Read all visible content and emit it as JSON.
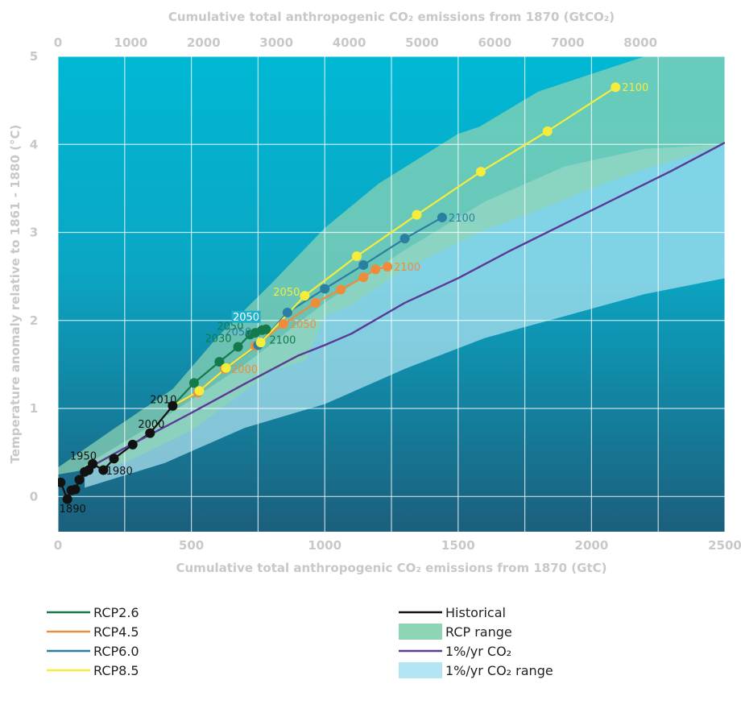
{
  "chart_data": {
    "type": "line",
    "xlabel": "Cumulative total anthropogenic CO₂ emissions from 1870 (GtC)",
    "x2label": "Cumulative total anthropogenic CO₂ emissions from 1870 (GtCO₂)",
    "ylabel": "Temperature anomaly relative to 1861 - 1880 (°C)",
    "xlim": [
      0,
      2500
    ],
    "ylim": [
      -0.4,
      5
    ],
    "x_ticks": [
      0,
      500,
      1000,
      1500,
      2000,
      2500
    ],
    "y_ticks": [
      0,
      1,
      2,
      3,
      4,
      5
    ],
    "x2_ticks": [
      0,
      1000,
      2000,
      3000,
      4000,
      5000,
      6000,
      7000,
      8000
    ],
    "x2_per_x": 3.664,
    "grid": true,
    "background": {
      "top_color": "#00b8d4",
      "bottom_color": "#1b5f7c"
    },
    "series": [
      {
        "name": "Historical",
        "color": "#111111",
        "points": [
          [
            10,
            0.16
          ],
          [
            35,
            -0.03
          ],
          [
            50,
            0.07
          ],
          [
            65,
            0.08
          ],
          [
            80,
            0.19
          ],
          [
            100,
            0.28
          ],
          [
            115,
            0.3
          ],
          [
            130,
            0.37
          ],
          [
            170,
            0.3
          ],
          [
            210,
            0.43
          ],
          [
            280,
            0.59
          ],
          [
            345,
            0.72
          ],
          [
            430,
            1.03
          ]
        ]
      },
      {
        "name": "RCP2.6",
        "color": "#137a4b",
        "points": [
          [
            430,
            1.03
          ],
          [
            510,
            1.29
          ],
          [
            605,
            1.53
          ],
          [
            675,
            1.7
          ],
          [
            720,
            1.84
          ],
          [
            740,
            1.86
          ],
          [
            765,
            1.89
          ],
          [
            780,
            1.9
          ]
        ],
        "labels": [
          {
            "i": 3,
            "text": "2030"
          },
          {
            "i": 4,
            "text": "2050"
          },
          {
            "i": 7,
            "text": "2100"
          }
        ]
      },
      {
        "name": "RCP4.5",
        "color": "#ef8c3a",
        "points": [
          [
            430,
            1.03
          ],
          [
            525,
            1.18
          ],
          [
            625,
            1.45
          ],
          [
            740,
            1.71
          ],
          [
            845,
            1.96
          ],
          [
            965,
            2.2
          ],
          [
            1060,
            2.35
          ],
          [
            1145,
            2.49
          ],
          [
            1190,
            2.58
          ],
          [
            1235,
            2.61
          ]
        ],
        "labels": [
          {
            "i": 2,
            "text": "2000"
          },
          {
            "i": 4,
            "text": "2050"
          },
          {
            "i": 9,
            "text": "2100"
          }
        ]
      },
      {
        "name": "RCP6.0",
        "color": "#2b7fa0",
        "points": [
          [
            430,
            1.03
          ],
          [
            530,
            1.2
          ],
          [
            630,
            1.46
          ],
          [
            750,
            1.72
          ],
          [
            860,
            2.09
          ],
          [
            1000,
            2.36
          ],
          [
            1145,
            2.63
          ],
          [
            1300,
            2.93
          ],
          [
            1440,
            3.17
          ]
        ],
        "labels": [
          {
            "i": 3,
            "text": "2050"
          },
          {
            "i": 8,
            "text": "2100"
          }
        ]
      },
      {
        "name": "RCP8.5",
        "color": "#f5ec3c",
        "points": [
          [
            430,
            1.03
          ],
          [
            530,
            1.2
          ],
          [
            630,
            1.46
          ],
          [
            760,
            1.75
          ],
          [
            925,
            2.28
          ],
          [
            1120,
            2.73
          ],
          [
            1345,
            3.2
          ],
          [
            1585,
            3.69
          ],
          [
            1835,
            4.15
          ],
          [
            2090,
            4.65
          ]
        ],
        "labels": [
          {
            "i": 4,
            "text": "2050"
          },
          {
            "i": 9,
            "text": "2100"
          }
        ]
      },
      {
        "name": "1%/yr CO₂",
        "color": "#5a3a96",
        "points": [
          [
            100,
            0.3
          ],
          [
            250,
            0.55
          ],
          [
            500,
            0.95
          ],
          [
            700,
            1.28
          ],
          [
            900,
            1.6
          ],
          [
            1000,
            1.72
          ],
          [
            1100,
            1.85
          ],
          [
            1300,
            2.2
          ],
          [
            1500,
            2.48
          ],
          [
            1700,
            2.8
          ],
          [
            1900,
            3.1
          ],
          [
            2100,
            3.4
          ],
          [
            2300,
            3.7
          ],
          [
            2500,
            4.02
          ]
        ]
      }
    ],
    "ranges": [
      {
        "name": "1%/yr CO₂ range",
        "color": "#b3e5f2",
        "upper": [
          [
            100,
            0.35
          ],
          [
            400,
            0.9
          ],
          [
            700,
            1.5
          ],
          [
            1000,
            2.2
          ],
          [
            1300,
            2.8
          ],
          [
            1600,
            3.35
          ],
          [
            1900,
            3.75
          ],
          [
            2200,
            3.95
          ],
          [
            2500,
            4.0
          ]
        ],
        "lower": [
          [
            100,
            0.1
          ],
          [
            400,
            0.38
          ],
          [
            700,
            0.78
          ],
          [
            1000,
            1.05
          ],
          [
            1300,
            1.45
          ],
          [
            1600,
            1.8
          ],
          [
            1900,
            2.05
          ],
          [
            2200,
            2.3
          ],
          [
            2500,
            2.48
          ]
        ]
      },
      {
        "name": "RCP range",
        "color": "#8fd4b4",
        "upper": [
          [
            0,
            0.33
          ],
          [
            200,
            0.75
          ],
          [
            430,
            1.22
          ],
          [
            600,
            1.82
          ],
          [
            800,
            2.42
          ],
          [
            1000,
            3.05
          ],
          [
            1200,
            3.55
          ],
          [
            1500,
            4.12
          ],
          [
            1580,
            4.2
          ],
          [
            1800,
            4.6
          ],
          [
            2200,
            5.0
          ],
          [
            2500,
            5.0
          ]
        ],
        "lower": [
          [
            2500,
            4.0
          ],
          [
            2200,
            3.72
          ],
          [
            2000,
            3.5
          ],
          [
            1800,
            3.25
          ],
          [
            1590,
            3.02
          ],
          [
            1300,
            2.58
          ],
          [
            1100,
            2.18
          ],
          [
            1000,
            2.05
          ],
          [
            930,
            1.55
          ],
          [
            800,
            1.42
          ],
          [
            500,
            0.75
          ],
          [
            250,
            0.38
          ],
          [
            0,
            0.25
          ]
        ]
      }
    ],
    "annotations": [
      {
        "text": "1950",
        "x": 95,
        "y": 0.42,
        "color": "#111111"
      },
      {
        "text": "1890",
        "x": 55,
        "y": -0.18,
        "color": "#111111"
      },
      {
        "text": "1980",
        "x": 230,
        "y": 0.25,
        "color": "#111111"
      },
      {
        "text": "2000",
        "x": 350,
        "y": 0.78,
        "color": "#111111"
      },
      {
        "text": "2010",
        "x": 395,
        "y": 1.06,
        "color": "#111111"
      },
      {
        "text": "2050",
        "x": 705,
        "y": 2.0,
        "color": "#ffffff",
        "boxed": true
      }
    ],
    "legend": {
      "left": [
        "RCP2.6",
        "RCP4.5",
        "RCP6.0",
        "RCP8.5"
      ],
      "right": [
        "Historical",
        "RCP range",
        "1%/yr CO₂",
        "1%/yr CO₂ range"
      ]
    }
  }
}
